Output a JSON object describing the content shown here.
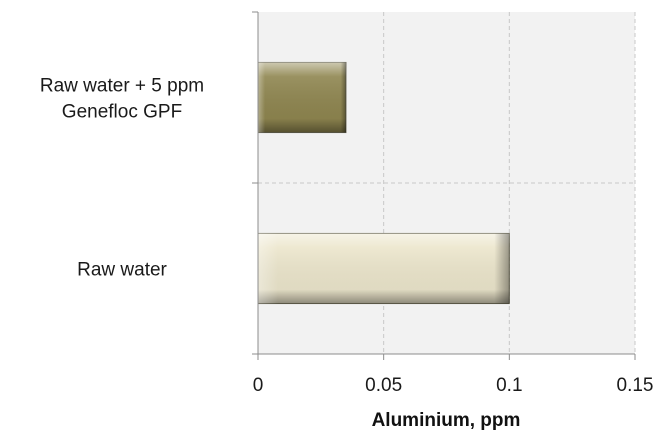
{
  "chart_data": {
    "type": "bar",
    "orientation": "horizontal",
    "categories": [
      "Raw water + 5 ppm Genefloc GPF",
      "Raw water"
    ],
    "category_label_lines": [
      [
        "Raw water + 5 ppm",
        "Genefloc GPF"
      ],
      [
        "Raw water"
      ]
    ],
    "values": [
      0.035,
      0.1
    ],
    "bar_colors": [
      "#8f8650",
      "#ece6cc"
    ],
    "xlabel": "Aluminium, ppm",
    "ylabel": "",
    "xlim": [
      0,
      0.15
    ],
    "x_ticks": [
      "0",
      "0.05",
      "0.1",
      "0.15"
    ],
    "grid": true,
    "plot_background": "#f2f2f2"
  }
}
